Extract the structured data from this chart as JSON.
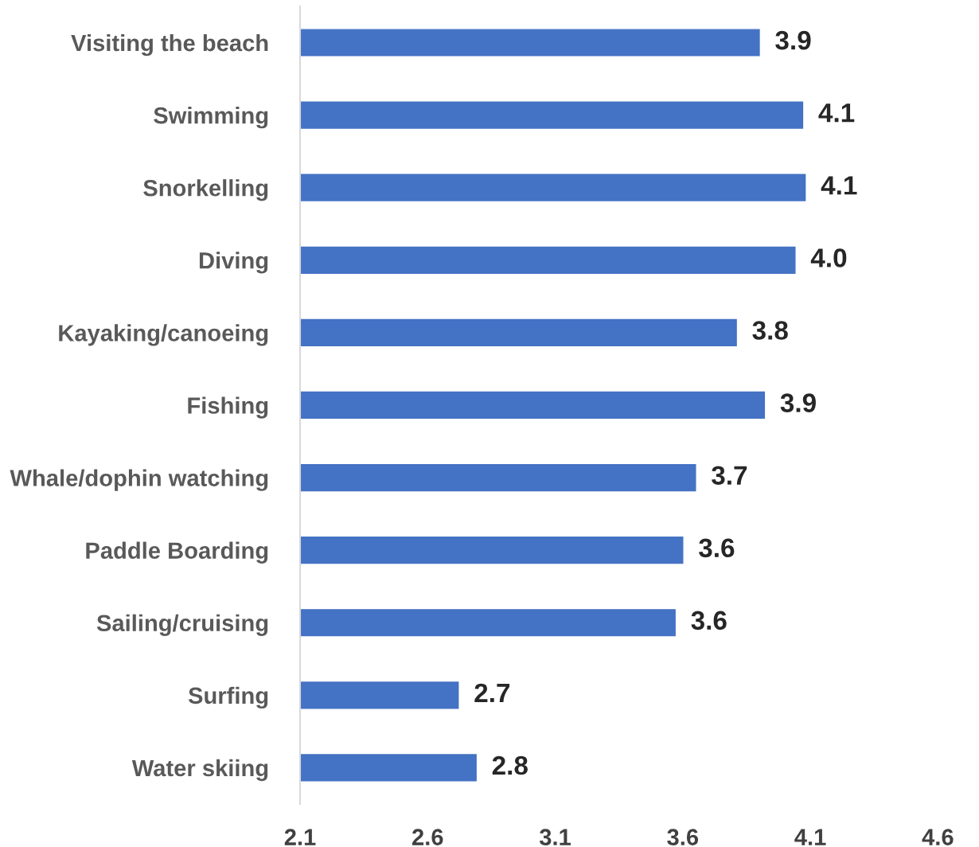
{
  "chart_data": {
    "type": "bar",
    "orientation": "horizontal",
    "categories": [
      "Visiting the beach",
      "Swimming",
      "Snorkelling",
      "Diving",
      "Kayaking/canoeing",
      "Fishing",
      "Whale/dophin watching",
      "Paddle Boarding",
      "Sailing/cruising",
      "Surfing",
      "Water skiing"
    ],
    "values": [
      3.9,
      4.07,
      4.08,
      4.04,
      3.81,
      3.92,
      3.65,
      3.6,
      3.57,
      2.72,
      2.79
    ],
    "value_labels": [
      "3.9",
      "4.1",
      "4.1",
      "4.0",
      "3.8",
      "3.9",
      "3.7",
      "3.6",
      "3.6",
      "2.7",
      "2.8"
    ],
    "color": "#4472c4",
    "xlim": [
      2.1,
      4.6
    ],
    "xticks": [
      2.1,
      2.6,
      3.1,
      3.6,
      4.1,
      4.6
    ],
    "grid": false,
    "legend": false
  }
}
